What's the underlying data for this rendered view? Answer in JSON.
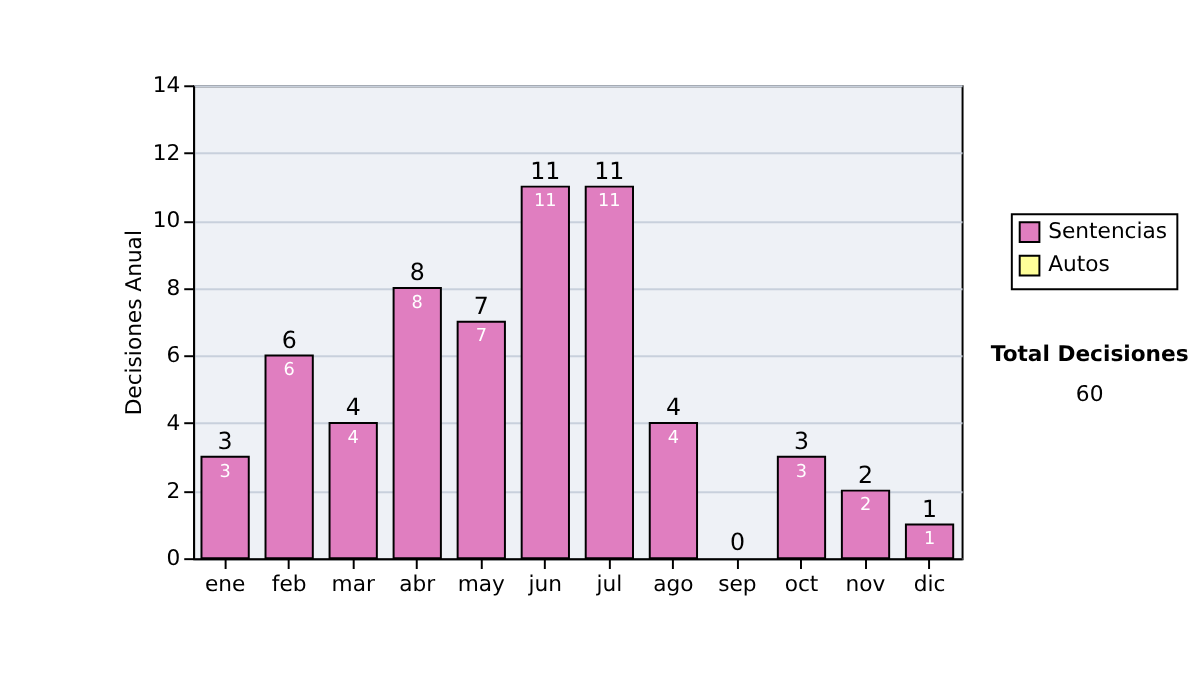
{
  "chart_data": {
    "type": "bar",
    "stacked": true,
    "ylabel": "Decisiones Anual",
    "categories": [
      "ene",
      "feb",
      "mar",
      "abr",
      "may",
      "jun",
      "jul",
      "ago",
      "sep",
      "oct",
      "nov",
      "dic"
    ],
    "series": [
      {
        "name": "Sentencias",
        "color": "#e07ec0",
        "values": [
          3,
          6,
          4,
          8,
          7,
          11,
          11,
          4,
          0,
          3,
          2,
          1
        ],
        "value_labels": [
          "3",
          "6",
          "4",
          "8",
          "7",
          "11",
          "11",
          "4",
          null,
          "3",
          "2",
          "1"
        ]
      },
      {
        "name": "Autos",
        "color": "#ffff99",
        "values": [
          0,
          0,
          0,
          0,
          0,
          0,
          0,
          0,
          0,
          0,
          0,
          0
        ]
      }
    ],
    "totals": [
      "3",
      "6",
      "4",
      "8",
      "7",
      "11",
      "11",
      "4",
      "0",
      "3",
      "2",
      "1"
    ],
    "ylim": [
      0,
      14
    ],
    "yticks": [
      0,
      2,
      4,
      6,
      8,
      10,
      12,
      14
    ],
    "grid": "y",
    "legend": "right",
    "annotations": [
      "Total Decisiones",
      "60"
    ]
  }
}
